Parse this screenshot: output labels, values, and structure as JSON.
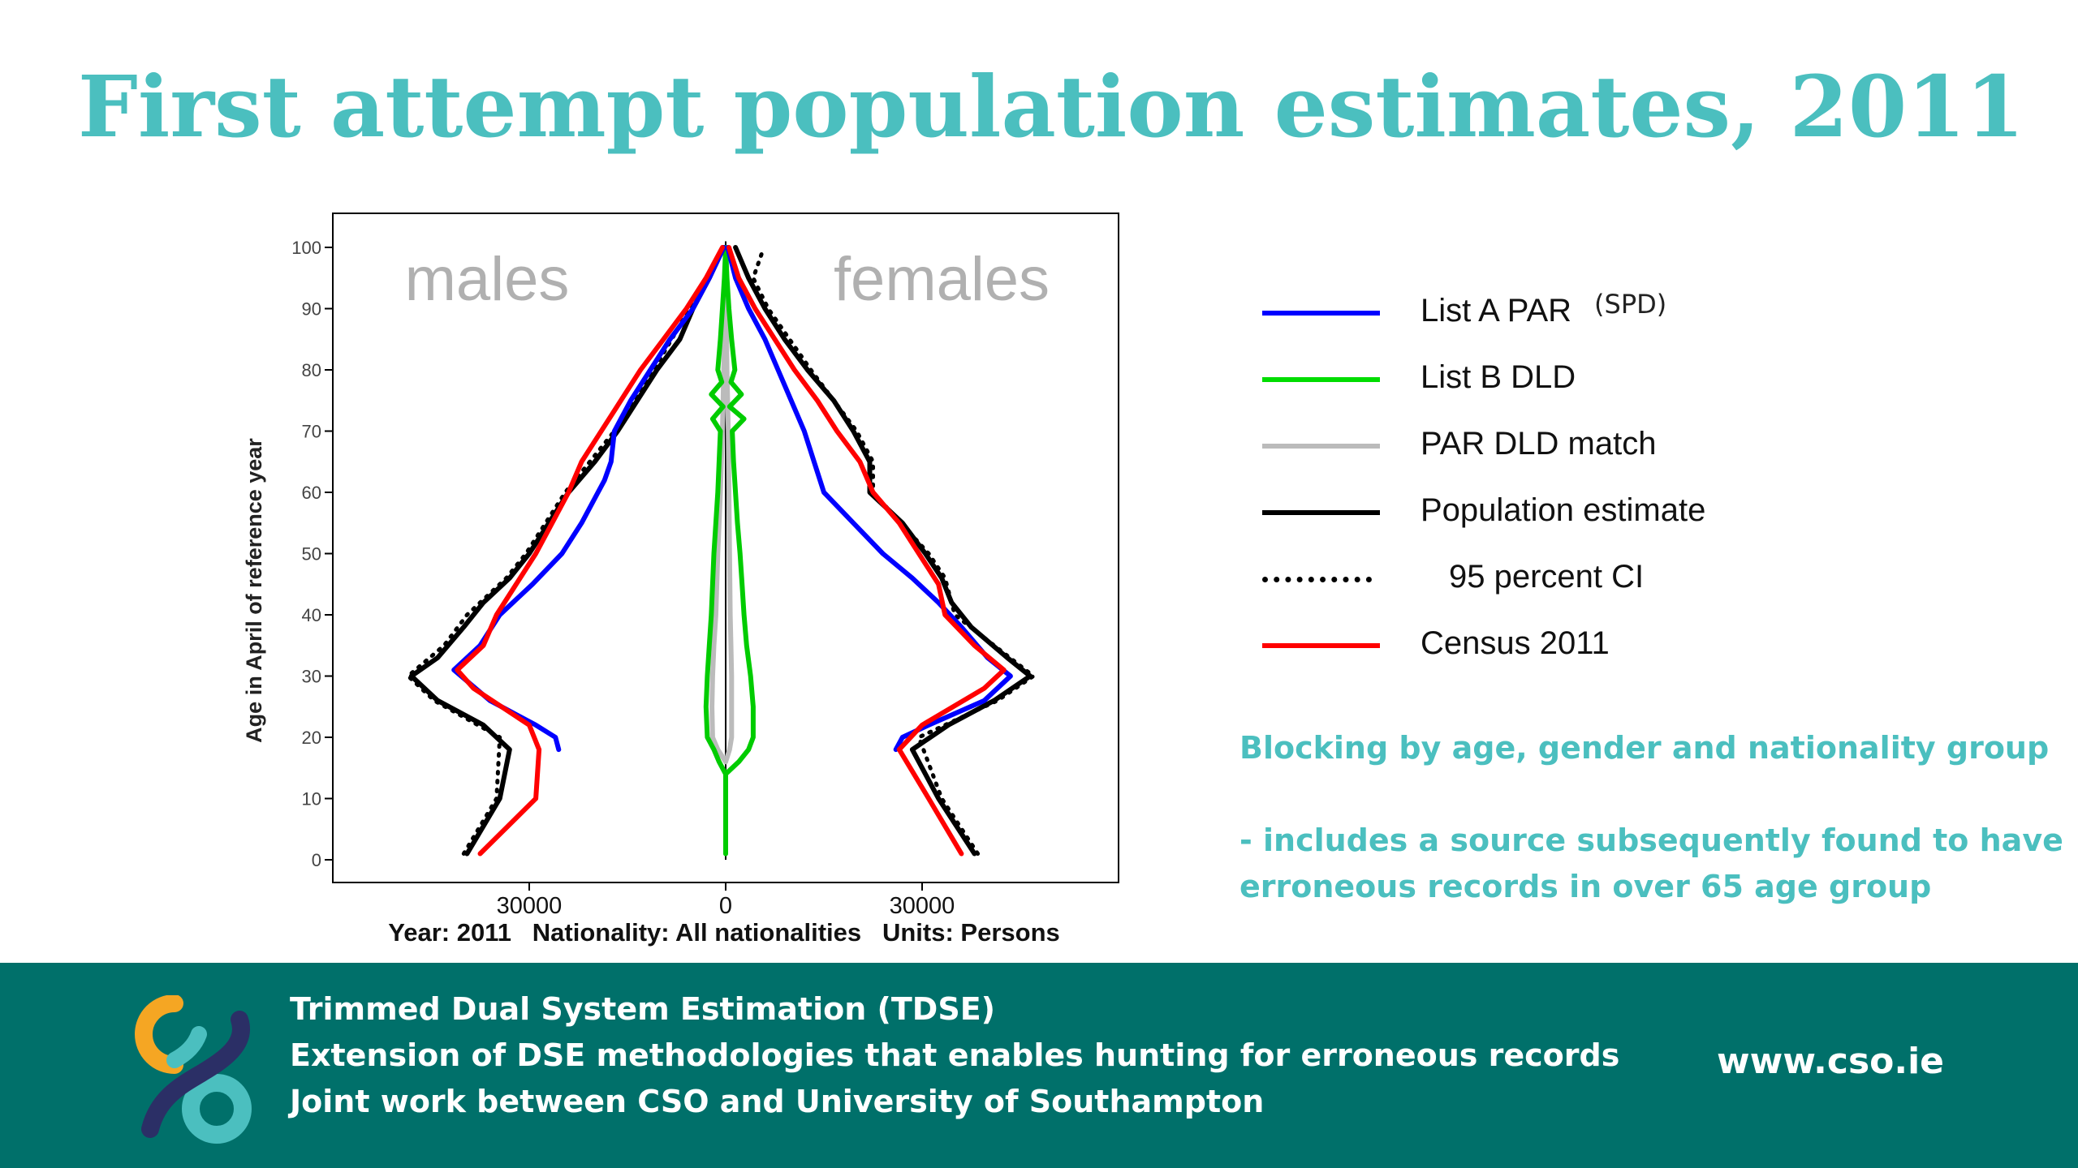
{
  "title": "First attempt population estimates, 2011",
  "chart_data": {
    "type": "line",
    "chart_kind": "population pyramid",
    "panel_labels": {
      "left": "males",
      "right": "females"
    },
    "ylabel": "Age in April of reference year",
    "ylim": [
      0,
      100
    ],
    "yticks": [
      0,
      10,
      20,
      30,
      40,
      50,
      60,
      70,
      80,
      90,
      100
    ],
    "xlim": [
      -60000,
      60000
    ],
    "xticks": [
      {
        "value": -30000,
        "label": "30000"
      },
      {
        "value": 0,
        "label": "0"
      },
      {
        "value": 30000,
        "label": "30000"
      }
    ],
    "caption": "Year: 2011   Nationality: All nationalities   Units: Persons",
    "grid": false,
    "series": [
      {
        "key": "census",
        "name": "Census 2011",
        "color": "#ff0000",
        "style": "solid",
        "male": [
          [
            1,
            -37500
          ],
          [
            10,
            -29000
          ],
          [
            18,
            -28500
          ],
          [
            22,
            -30000
          ],
          [
            28,
            -38500
          ],
          [
            31,
            -41000
          ],
          [
            35,
            -37000
          ],
          [
            40,
            -35000
          ],
          [
            45,
            -32000
          ],
          [
            50,
            -29000
          ],
          [
            55,
            -26500
          ],
          [
            60,
            -24000
          ],
          [
            65,
            -22000
          ],
          [
            70,
            -19000
          ],
          [
            75,
            -16000
          ],
          [
            80,
            -13000
          ],
          [
            85,
            -9500
          ],
          [
            90,
            -6000
          ],
          [
            95,
            -3000
          ],
          [
            100,
            -500
          ]
        ],
        "female": [
          [
            1,
            36000
          ],
          [
            10,
            31000
          ],
          [
            18,
            26500
          ],
          [
            22,
            30000
          ],
          [
            28,
            39500
          ],
          [
            31,
            42500
          ],
          [
            35,
            38000
          ],
          [
            40,
            33500
          ],
          [
            45,
            32500
          ],
          [
            50,
            29500
          ],
          [
            55,
            26500
          ],
          [
            60,
            22500
          ],
          [
            65,
            20500
          ],
          [
            70,
            17000
          ],
          [
            75,
            14000
          ],
          [
            80,
            10500
          ],
          [
            85,
            7500
          ],
          [
            90,
            4500
          ],
          [
            95,
            2000
          ],
          [
            100,
            500
          ]
        ]
      },
      {
        "key": "estimate",
        "name": "Population estimate",
        "color": "#000000",
        "style": "solid",
        "male": [
          [
            1,
            -39500
          ],
          [
            10,
            -34500
          ],
          [
            18,
            -33000
          ],
          [
            22,
            -37000
          ],
          [
            26,
            -44000
          ],
          [
            30,
            -48000
          ],
          [
            33,
            -44000
          ],
          [
            38,
            -40000
          ],
          [
            42,
            -37000
          ],
          [
            46,
            -33000
          ],
          [
            50,
            -30000
          ],
          [
            55,
            -27000
          ],
          [
            60,
            -24000
          ],
          [
            65,
            -20000
          ],
          [
            70,
            -16500
          ],
          [
            75,
            -13500
          ],
          [
            80,
            -10500
          ],
          [
            85,
            -7000
          ],
          [
            90,
            -5000
          ],
          [
            95,
            -2500
          ],
          [
            100,
            -300
          ]
        ],
        "female": [
          [
            1,
            38000
          ],
          [
            10,
            32500
          ],
          [
            18,
            28500
          ],
          [
            22,
            34000
          ],
          [
            26,
            41000
          ],
          [
            30,
            46500
          ],
          [
            33,
            43000
          ],
          [
            38,
            37500
          ],
          [
            42,
            34500
          ],
          [
            46,
            33000
          ],
          [
            50,
            30500
          ],
          [
            55,
            27000
          ],
          [
            60,
            22000
          ],
          [
            65,
            22000
          ],
          [
            70,
            19500
          ],
          [
            75,
            16500
          ],
          [
            80,
            12500
          ],
          [
            85,
            9000
          ],
          [
            90,
            6000
          ],
          [
            95,
            3500
          ],
          [
            100,
            1500
          ]
        ]
      },
      {
        "key": "ci",
        "name": "95 percent CI",
        "color": "#000000",
        "style": "dotted",
        "male": [
          [
            1,
            -40000
          ],
          [
            10,
            -35000
          ],
          [
            20,
            -34500
          ],
          [
            26,
            -44500
          ],
          [
            30,
            -48500
          ],
          [
            35,
            -43000
          ],
          [
            40,
            -39500
          ],
          [
            46,
            -33500
          ],
          [
            50,
            -30500
          ],
          [
            60,
            -24500
          ],
          [
            70,
            -17000
          ],
          [
            80,
            -11000
          ],
          [
            90,
            -5500
          ],
          [
            100,
            -500
          ]
        ],
        "female": [
          [
            1,
            38500
          ],
          [
            10,
            33000
          ],
          [
            20,
            29500
          ],
          [
            26,
            41500
          ],
          [
            30,
            47000
          ],
          [
            35,
            41000
          ],
          [
            40,
            35000
          ],
          [
            46,
            33500
          ],
          [
            50,
            31000
          ],
          [
            60,
            22500
          ],
          [
            65,
            22500
          ],
          [
            70,
            20000
          ],
          [
            80,
            13000
          ],
          [
            90,
            6500
          ],
          [
            95,
            4200
          ],
          [
            99,
            5500
          ]
        ]
      },
      {
        "key": "list_a",
        "name": "List A PAR",
        "color": "#0000ff",
        "style": "solid",
        "male": [
          [
            18,
            -25500
          ],
          [
            20,
            -26000
          ],
          [
            22,
            -29000
          ],
          [
            26,
            -36000
          ],
          [
            31,
            -41500
          ],
          [
            35,
            -37500
          ],
          [
            40,
            -34500
          ],
          [
            45,
            -29500
          ],
          [
            50,
            -25000
          ],
          [
            55,
            -22000
          ],
          [
            60,
            -19500
          ],
          [
            62,
            -18500
          ],
          [
            65,
            -17500
          ],
          [
            70,
            -17000
          ],
          [
            75,
            -14500
          ],
          [
            80,
            -11500
          ],
          [
            85,
            -8500
          ],
          [
            90,
            -5000
          ],
          [
            95,
            -2500
          ],
          [
            100,
            -300
          ]
        ],
        "female": [
          [
            18,
            26000
          ],
          [
            20,
            27000
          ],
          [
            22,
            31000
          ],
          [
            26,
            39500
          ],
          [
            30,
            43500
          ],
          [
            33,
            40000
          ],
          [
            38,
            36000
          ],
          [
            42,
            32500
          ],
          [
            46,
            28500
          ],
          [
            50,
            24000
          ],
          [
            55,
            19500
          ],
          [
            60,
            15000
          ],
          [
            65,
            13500
          ],
          [
            70,
            12000
          ],
          [
            75,
            10000
          ],
          [
            80,
            8000
          ],
          [
            85,
            6000
          ],
          [
            90,
            3500
          ],
          [
            95,
            1500
          ],
          [
            100,
            300
          ]
        ]
      },
      {
        "key": "list_b",
        "name": "List B DLD",
        "color": "#00cc00",
        "style": "solid",
        "male": [
          [
            1,
            0
          ],
          [
            14,
            0
          ],
          [
            16,
            -1000
          ],
          [
            18,
            -1800
          ],
          [
            20,
            -2800
          ],
          [
            25,
            -3000
          ],
          [
            30,
            -2800
          ],
          [
            35,
            -2500
          ],
          [
            40,
            -2200
          ],
          [
            45,
            -2000
          ],
          [
            50,
            -1800
          ],
          [
            55,
            -1500
          ],
          [
            60,
            -1200
          ],
          [
            65,
            -1000
          ],
          [
            70,
            -800
          ],
          [
            72,
            -2000
          ],
          [
            74,
            -400
          ],
          [
            76,
            -2200
          ],
          [
            78,
            -600
          ],
          [
            80,
            -1200
          ],
          [
            85,
            -800
          ],
          [
            90,
            -500
          ],
          [
            95,
            -200
          ],
          [
            100,
            0
          ]
        ],
        "female": [
          [
            1,
            0
          ],
          [
            14,
            0
          ],
          [
            16,
            2000
          ],
          [
            18,
            3500
          ],
          [
            20,
            4200
          ],
          [
            25,
            4200
          ],
          [
            30,
            3800
          ],
          [
            35,
            3200
          ],
          [
            40,
            2800
          ],
          [
            45,
            2500
          ],
          [
            50,
            2200
          ],
          [
            55,
            1800
          ],
          [
            60,
            1500
          ],
          [
            65,
            1200
          ],
          [
            70,
            1000
          ],
          [
            72,
            2800
          ],
          [
            74,
            600
          ],
          [
            76,
            2400
          ],
          [
            78,
            800
          ],
          [
            80,
            1400
          ],
          [
            85,
            900
          ],
          [
            90,
            500
          ],
          [
            95,
            200
          ],
          [
            100,
            0
          ]
        ]
      },
      {
        "key": "match",
        "name": "PAR DLD match",
        "color": "#bbbbbb",
        "style": "solid",
        "male": [
          [
            16,
            0
          ],
          [
            18,
            -1200
          ],
          [
            20,
            -2000
          ],
          [
            25,
            -2100
          ],
          [
            30,
            -2000
          ],
          [
            35,
            -1800
          ],
          [
            40,
            -1500
          ],
          [
            50,
            -1200
          ],
          [
            60,
            -800
          ],
          [
            70,
            -500
          ],
          [
            80,
            -300
          ],
          [
            90,
            -100
          ],
          [
            100,
            0
          ]
        ],
        "female": [
          [
            16,
            0
          ],
          [
            18,
            600
          ],
          [
            20,
            900
          ],
          [
            25,
            900
          ],
          [
            30,
            900
          ],
          [
            35,
            800
          ],
          [
            40,
            700
          ],
          [
            50,
            600
          ],
          [
            60,
            500
          ],
          [
            70,
            400
          ],
          [
            80,
            200
          ],
          [
            90,
            100
          ],
          [
            100,
            0
          ]
        ]
      }
    ]
  },
  "legend": [
    {
      "label": "List A PAR",
      "sup": "(SPD)",
      "color": "#0000ff",
      "style": "solid",
      "indent": false
    },
    {
      "label": "List B DLD",
      "sup": "",
      "color": "#00dd00",
      "style": "solid",
      "indent": false
    },
    {
      "label": "PAR DLD match",
      "sup": "",
      "color": "#bbbbbb",
      "style": "solid",
      "indent": false
    },
    {
      "label": "Population estimate",
      "sup": "",
      "color": "#000000",
      "style": "solid",
      "indent": false
    },
    {
      "label": "95 percent CI",
      "sup": "",
      "color": "#000000",
      "style": "dotted",
      "indent": true
    },
    {
      "label": "Census 2011",
      "sup": "",
      "color": "#ff0000",
      "style": "solid",
      "indent": false
    }
  ],
  "notes": [
    "Blocking by age, gender and nationality group",
    "- includes a source subsequently found to have",
    "erroneous records in over 65 age group"
  ],
  "footer": {
    "lines": [
      "Trimmed Dual System Estimation (TDSE)",
      "Extension of DSE methodologies that enables hunting for erroneous records",
      "Joint work between CSO and University of Southampton"
    ],
    "url": "www.cso.ie",
    "bg_color": "#00706a",
    "logo_colors": {
      "orange": "#f5a623",
      "teal": "#4bbfbf",
      "navy": "#2b2f66"
    }
  }
}
